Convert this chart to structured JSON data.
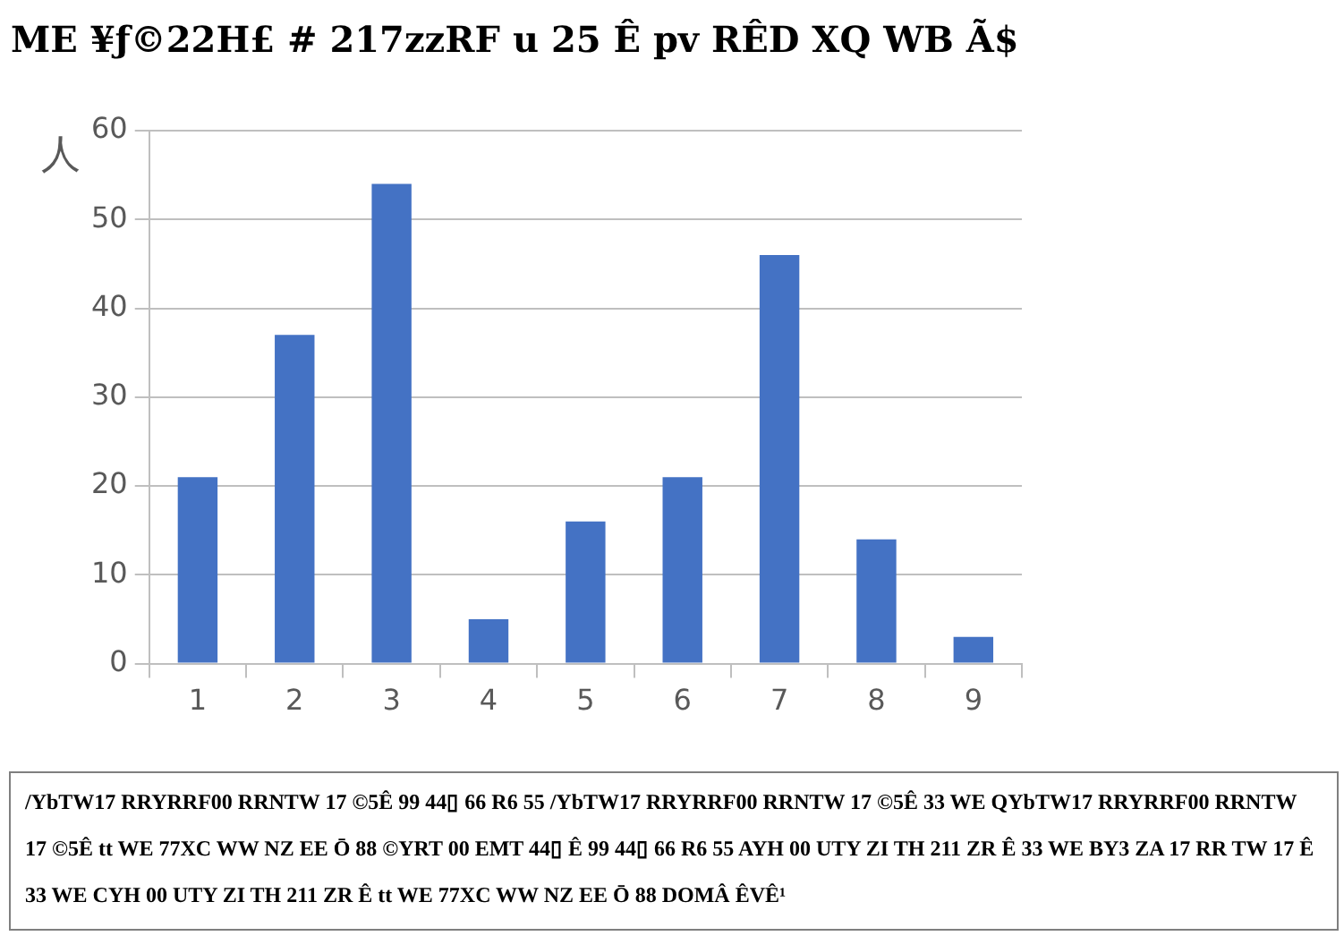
{
  "chart_data": {
    "type": "bar",
    "title": "ME ¥ƒ©22H£ # 217zzRF u 25 Ê pv RÊD XQ WB Ã$",
    "ylabel": "人",
    "categories": [
      "1",
      "2",
      "3",
      "4",
      "5",
      "6",
      "7",
      "8",
      "9"
    ],
    "values": [
      21,
      37,
      54,
      5,
      16,
      21,
      46,
      14,
      3
    ],
    "color": "#4472c4",
    "ylim": [
      0,
      60
    ],
    "yticks": [
      0,
      10,
      20,
      30,
      40,
      50,
      60
    ],
    "grid": "y",
    "legend": false,
    "annotations": [
      "/YbTW17 RRYRRF00 RRNTW 17 ©5Ê 99 44▯ 66 R6 55 /YbTW17 RRYRRF00 RRNTW 17 ©5Ê 33 WE QYbTW17 RRYRRF00 RRNTW 17 ©5Ê tt WE 77XC WW NZ EE Ō 88 ©YRT 00 EMT 44▯ Ê 99 44▯ 66 R6 55 AYH 00 UTY ZI TH 211 ZR Ê 33 WE BY3 ZA 17 RR TW 17 Ê 33 WE CYH 00 UTY ZI TH 211 ZR Ê tt WE 77XC WW NZ EE Ō 88 DOMÂ ÊVÊ¹"
    ]
  }
}
